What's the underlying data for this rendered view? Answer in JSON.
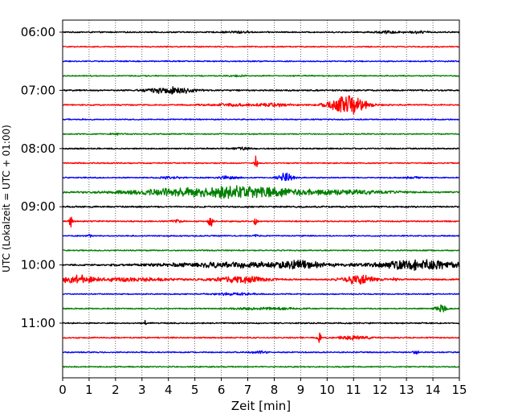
{
  "chart_data": {
    "type": "line",
    "title": "",
    "xlabel": "Zeit  [min]",
    "ylabel": "UTC (Lokalzeit = UTC + 01:00)",
    "xlim": [
      0,
      15
    ],
    "x_ticks": [
      "0",
      "1",
      "2",
      "3",
      "4",
      "5",
      "6",
      "7",
      "8",
      "9",
      "10",
      "11",
      "12",
      "13",
      "14",
      "15"
    ],
    "y_ticks": [
      "06:00",
      "07:00",
      "08:00",
      "09:00",
      "10:00",
      "11:00"
    ],
    "grid": "vertical-dotted",
    "trace_interval_minutes": 15,
    "start_time": "06:00",
    "colors": [
      "#000000",
      "#ff0000",
      "#0000ff",
      "#008000"
    ],
    "traces": [
      {
        "time": "06:00",
        "noise": 0.9,
        "events": [
          {
            "t": 6.6,
            "amp": 1.4,
            "dur": 0.4
          },
          {
            "t": 12.3,
            "amp": 1.5,
            "dur": 0.5
          },
          {
            "t": 13.5,
            "amp": 1.2,
            "dur": 0.4
          }
        ]
      },
      {
        "time": "06:15",
        "noise": 0.8,
        "events": []
      },
      {
        "time": "06:30",
        "noise": 0.8,
        "events": []
      },
      {
        "time": "06:45",
        "noise": 0.8,
        "events": [
          {
            "t": 6.6,
            "amp": 1.0,
            "dur": 0.3
          }
        ]
      },
      {
        "time": "07:00",
        "noise": 1.0,
        "events": [
          {
            "t": 4.1,
            "amp": 5.0,
            "dur": 0.8
          }
        ]
      },
      {
        "time": "07:15",
        "noise": 0.9,
        "events": [
          {
            "t": 10.8,
            "amp": 13.0,
            "dur": 0.7
          },
          {
            "t": 6.5,
            "amp": 1.5,
            "dur": 1.0
          },
          {
            "t": 8.0,
            "amp": 1.8,
            "dur": 0.6
          }
        ]
      },
      {
        "time": "07:30",
        "noise": 0.8,
        "events": []
      },
      {
        "time": "07:45",
        "noise": 0.8,
        "events": [
          {
            "t": 2.1,
            "amp": 1.2,
            "dur": 0.3
          }
        ]
      },
      {
        "time": "08:00",
        "noise": 0.9,
        "events": [
          {
            "t": 6.8,
            "amp": 1.3,
            "dur": 0.3
          }
        ]
      },
      {
        "time": "08:15",
        "noise": 0.8,
        "events": [
          {
            "t": 7.3,
            "amp": 16.0,
            "dur": 0.05
          }
        ]
      },
      {
        "time": "08:30",
        "noise": 0.8,
        "events": [
          {
            "t": 8.4,
            "amp": 7.0,
            "dur": 0.3
          },
          {
            "t": 6.3,
            "amp": 2.0,
            "dur": 0.4
          },
          {
            "t": 4.1,
            "amp": 1.5,
            "dur": 0.4
          },
          {
            "t": 13.2,
            "amp": 1.2,
            "dur": 0.3
          }
        ]
      },
      {
        "time": "08:45",
        "noise": 1.0,
        "events": [
          {
            "t": 4.5,
            "amp": 4.5,
            "dur": 2.2
          },
          {
            "t": 7.0,
            "amp": 7.0,
            "dur": 1.6
          },
          {
            "t": 10.2,
            "amp": 3.0,
            "dur": 2.0
          }
        ]
      },
      {
        "time": "09:00",
        "noise": 1.1,
        "events": []
      },
      {
        "time": "09:15",
        "noise": 0.9,
        "events": [
          {
            "t": 0.3,
            "amp": 8.0,
            "dur": 0.08
          },
          {
            "t": 5.6,
            "amp": 9.0,
            "dur": 0.08
          },
          {
            "t": 4.3,
            "amp": 2.0,
            "dur": 0.2
          },
          {
            "t": 7.3,
            "amp": 9.0,
            "dur": 0.05
          }
        ]
      },
      {
        "time": "09:30",
        "noise": 0.8,
        "events": [
          {
            "t": 1.0,
            "amp": 2.5,
            "dur": 0.1
          },
          {
            "t": 7.3,
            "amp": 1.5,
            "dur": 0.1
          }
        ]
      },
      {
        "time": "09:45",
        "noise": 0.8,
        "events": []
      },
      {
        "time": "10:00",
        "noise": 1.0,
        "events": [
          {
            "t": 7.0,
            "amp": 3.5,
            "dur": 3.5
          },
          {
            "t": 9.0,
            "amp": 5.0,
            "dur": 0.6
          },
          {
            "t": 13.5,
            "amp": 6.5,
            "dur": 1.6
          }
        ]
      },
      {
        "time": "10:15",
        "noise": 1.0,
        "events": [
          {
            "t": 0.5,
            "amp": 4.5,
            "dur": 0.6
          },
          {
            "t": 2.5,
            "amp": 2.0,
            "dur": 2.0
          },
          {
            "t": 6.8,
            "amp": 4.0,
            "dur": 1.0
          },
          {
            "t": 11.2,
            "amp": 6.0,
            "dur": 0.6
          },
          {
            "t": 12.6,
            "amp": 4.5,
            "dur": 0.08
          }
        ]
      },
      {
        "time": "10:30",
        "noise": 0.8,
        "events": [
          {
            "t": 6.5,
            "amp": 1.5,
            "dur": 0.8
          }
        ]
      },
      {
        "time": "10:45",
        "noise": 0.8,
        "events": [
          {
            "t": 14.3,
            "amp": 6.0,
            "dur": 0.2
          },
          {
            "t": 7.8,
            "amp": 1.4,
            "dur": 1.2
          }
        ]
      },
      {
        "time": "11:00",
        "noise": 0.9,
        "events": [
          {
            "t": 3.1,
            "amp": 3.0,
            "dur": 0.05
          }
        ]
      },
      {
        "time": "11:15",
        "noise": 0.9,
        "events": [
          {
            "t": 9.7,
            "amp": 10.0,
            "dur": 0.06
          },
          {
            "t": 11.0,
            "amp": 2.5,
            "dur": 0.6
          }
        ]
      },
      {
        "time": "11:30",
        "noise": 0.8,
        "events": [
          {
            "t": 7.4,
            "amp": 1.6,
            "dur": 0.3
          },
          {
            "t": 13.4,
            "amp": 1.5,
            "dur": 0.2
          }
        ]
      },
      {
        "time": "11:45",
        "noise": 0.8,
        "events": []
      }
    ]
  }
}
